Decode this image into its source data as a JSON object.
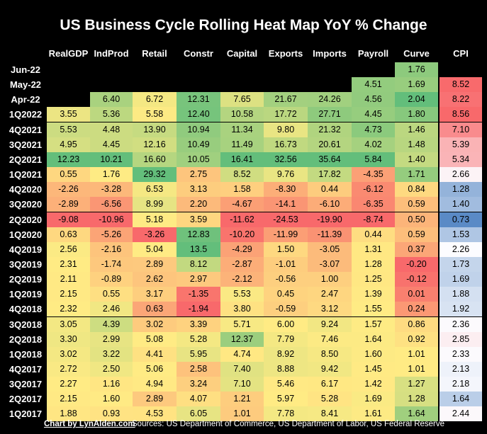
{
  "title": "US Business Cycle Rolling Heat Map YoY % Change",
  "footer": {
    "credit": "Chart by LynAlden.com",
    "sources": "Sources: US Department of Commerce, US Department of Labor, US Federal Reserve"
  },
  "chart_data": {
    "type": "heatmap",
    "title": "US Business Cycle Rolling Heat Map YoY % Change",
    "columns": [
      "RealGDP",
      "IndProd",
      "Retail",
      "Constr",
      "Capital",
      "Exports",
      "Imports",
      "Payroll",
      "Curve",
      "CPI"
    ],
    "rows": [
      {
        "label": "Jun-22",
        "values": [
          null,
          null,
          null,
          null,
          null,
          null,
          null,
          null,
          "1.76",
          null
        ]
      },
      {
        "label": "May-22",
        "values": [
          null,
          null,
          null,
          null,
          null,
          null,
          null,
          "4.51",
          "1.69",
          "8.52"
        ]
      },
      {
        "label": "Apr-22",
        "values": [
          null,
          "6.40",
          "6.72",
          "12.31",
          "7.65",
          "21.67",
          "24.26",
          "4.56",
          "2.04",
          "8.22"
        ]
      },
      {
        "label": "1Q2022",
        "values": [
          "3.55",
          "5.36",
          "5.58",
          "12.40",
          "10.58",
          "17.72",
          "27.71",
          "4.45",
          "1.80",
          "8.56"
        ]
      },
      {
        "label": "4Q2021",
        "values": [
          "5.53",
          "4.48",
          "13.90",
          "10.94",
          "11.34",
          "9.80",
          "21.32",
          "4.73",
          "1.46",
          "7.10"
        ]
      },
      {
        "label": "3Q2021",
        "values": [
          "4.95",
          "4.45",
          "12.16",
          "10.49",
          "11.49",
          "16.73",
          "20.61",
          "4.02",
          "1.48",
          "5.39"
        ]
      },
      {
        "label": "2Q2021",
        "values": [
          "12.23",
          "10.21",
          "16.60",
          "10.05",
          "16.41",
          "32.56",
          "35.64",
          "5.84",
          "1.40",
          "5.34"
        ]
      },
      {
        "label": "1Q2021",
        "values": [
          "0.55",
          "1.76",
          "29.32",
          "2.75",
          "8.52",
          "9.76",
          "17.82",
          "-4.35",
          "1.71",
          "2.66"
        ]
      },
      {
        "label": "4Q2020",
        "values": [
          "-2.26",
          "-3.28",
          "6.53",
          "3.13",
          "1.58",
          "-8.30",
          "0.44",
          "-6.12",
          "0.84",
          "1.28"
        ]
      },
      {
        "label": "3Q2020",
        "values": [
          "-2.89",
          "-6.56",
          "8.99",
          "2.20",
          "-4.67",
          "-14.1",
          "-6.10",
          "-6.35",
          "0.59",
          "1.40"
        ]
      },
      {
        "label": "2Q2020",
        "values": [
          "-9.08",
          "-10.96",
          "5.18",
          "3.59",
          "-11.62",
          "-24.53",
          "-19.90",
          "-8.74",
          "0.50",
          "0.73"
        ]
      },
      {
        "label": "1Q2020",
        "values": [
          "0.63",
          "-5.26",
          "-3.26",
          "12.83",
          "-10.20",
          "-11.99",
          "-11.39",
          "0.44",
          "0.59",
          "1.53"
        ]
      },
      {
        "label": "4Q2019",
        "values": [
          "2.56",
          "-2.16",
          "5.04",
          "13.5",
          "-4.29",
          "1.50",
          "-3.05",
          "1.31",
          "0.37",
          "2.26"
        ]
      },
      {
        "label": "3Q2019",
        "values": [
          "2.31",
          "-1.74",
          "2.89",
          "8.12",
          "-2.87",
          "-1.01",
          "-3.07",
          "1.28",
          "-0.20",
          "1.73"
        ]
      },
      {
        "label": "2Q2019",
        "values": [
          "2.11",
          "-0.89",
          "2.62",
          "2.97",
          "-2.12",
          "-0.56",
          "1.00",
          "1.25",
          "-0.12",
          "1.69"
        ]
      },
      {
        "label": "1Q2019",
        "values": [
          "2.15",
          "0.55",
          "3.17",
          "-1.35",
          "5.53",
          "0.45",
          "2.47",
          "1.39",
          "0.01",
          "1.88"
        ]
      },
      {
        "label": "4Q2018",
        "values": [
          "2.32",
          "2.46",
          "0.63",
          "-1.94",
          "3.80",
          "-0.59",
          "3.12",
          "1.55",
          "0.24",
          "1.92"
        ]
      },
      {
        "label": "3Q2018",
        "values": [
          "3.05",
          "4.39",
          "3.02",
          "3.39",
          "5.71",
          "6.00",
          "9.24",
          "1.57",
          "0.86",
          "2.36"
        ]
      },
      {
        "label": "2Q2018",
        "values": [
          "3.30",
          "2.99",
          "5.08",
          "5.28",
          "12.37",
          "7.79",
          "7.46",
          "1.64",
          "0.92",
          "2.85"
        ]
      },
      {
        "label": "1Q2018",
        "values": [
          "3.02",
          "3.22",
          "4.41",
          "5.95",
          "4.74",
          "8.92",
          "8.50",
          "1.60",
          "1.01",
          "2.33"
        ]
      },
      {
        "label": "4Q2017",
        "values": [
          "2.72",
          "2.50",
          "5.06",
          "2.58",
          "7.40",
          "8.88",
          "9.42",
          "1.45",
          "1.01",
          "2.13"
        ]
      },
      {
        "label": "3Q2017",
        "values": [
          "2.27",
          "1.16",
          "4.94",
          "3.24",
          "7.10",
          "5.46",
          "6.17",
          "1.42",
          "1.27",
          "2.18"
        ]
      },
      {
        "label": "2Q2017",
        "values": [
          "2.15",
          "1.60",
          "2.89",
          "4.07",
          "1.21",
          "5.97",
          "5.28",
          "1.69",
          "1.28",
          "1.64"
        ]
      },
      {
        "label": "1Q2017",
        "values": [
          "1.88",
          "0.93",
          "4.53",
          "6.05",
          "1.01",
          "7.78",
          "8.41",
          "1.61",
          "1.64",
          "2.44"
        ]
      }
    ],
    "colors": {
      "high": "#63BE7B",
      "mid": "#FFEB84",
      "low": "#F8696B",
      "cpi_high": "#F8696B",
      "cpi_mid": "#FCFCFF",
      "cpi_low": "#5A8AC6"
    }
  }
}
